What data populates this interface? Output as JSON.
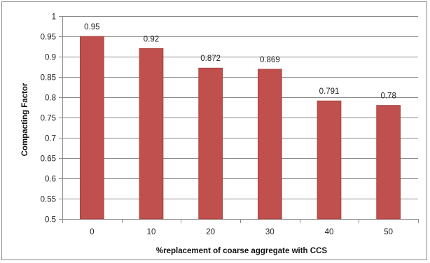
{
  "chart_data": {
    "type": "bar",
    "categories": [
      "0",
      "10",
      "20",
      "30",
      "40",
      "50"
    ],
    "values": [
      0.95,
      0.92,
      0.872,
      0.869,
      0.791,
      0.78
    ],
    "data_labels": [
      "0.95",
      "0.92",
      "0.872",
      "0.869",
      "0.791",
      "0.78"
    ],
    "title": "",
    "xlabel": "%replacement of coarse aggregate with CCS",
    "ylabel": "Compacting Factor",
    "ylim": [
      0.5,
      1
    ],
    "yticks": [
      0.5,
      0.55,
      0.6,
      0.65,
      0.7,
      0.75,
      0.8,
      0.85,
      0.9,
      0.95,
      1
    ],
    "ytick_labels": [
      "0.5",
      "0.55",
      "0.6",
      "0.65",
      "0.7",
      "0.75",
      "0.8",
      "0.85",
      "0.9",
      "0.95",
      "1"
    ],
    "grid": "horizontal",
    "legend": "none",
    "bar_color": "#C0504D",
    "bar_edge_color": "#9E3B38"
  }
}
